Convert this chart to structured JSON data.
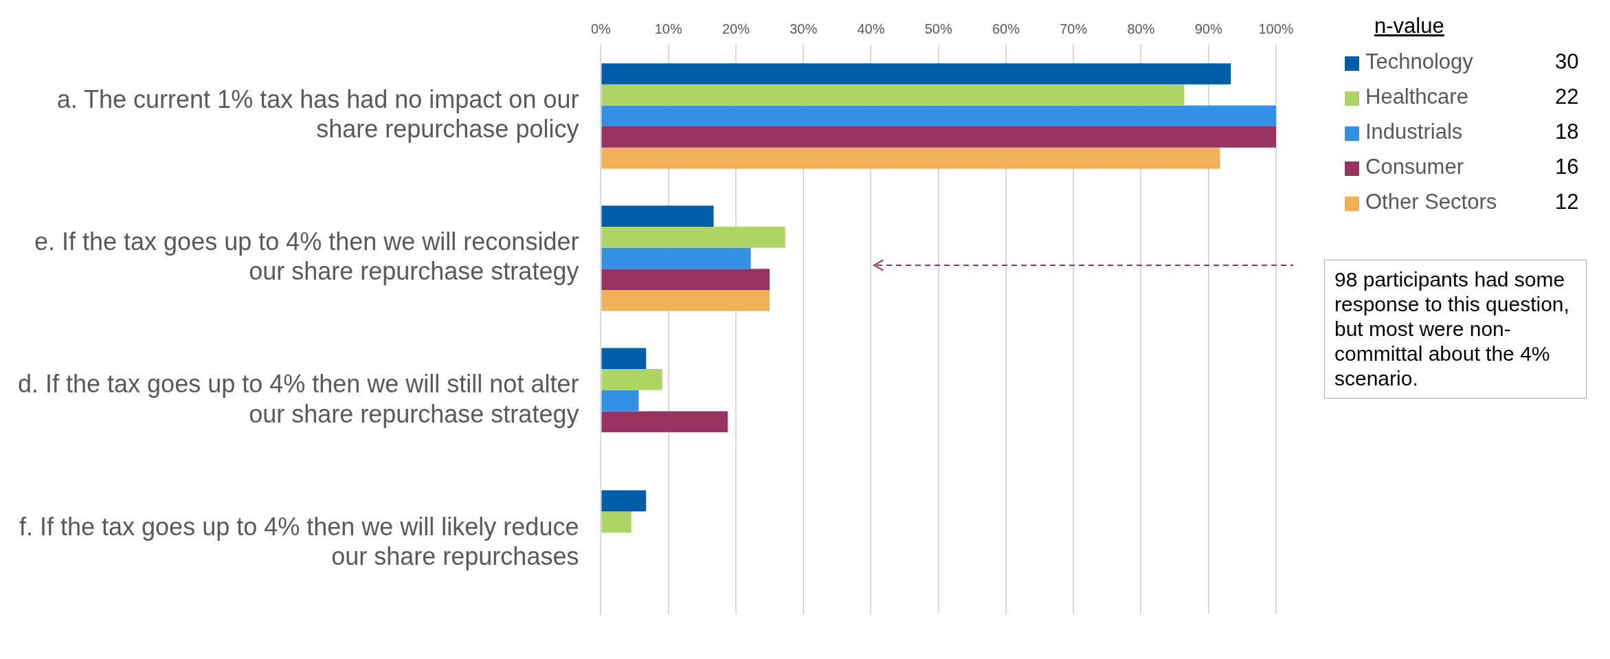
{
  "chart_data": {
    "type": "bar",
    "orientation": "horizontal",
    "categories": [
      "a. The current 1% tax has had no impact on our share repurchase policy",
      "e. If the tax goes up to 4% then we will reconsider our share repurchase strategy",
      "d. If the tax goes up to 4% then we will still not alter our share repurchase strategy",
      "f. If the tax goes up to 4% then we will likely reduce our share repurchases"
    ],
    "series": [
      {
        "name": "Technology",
        "color": "#005daa",
        "values": [
          93.3,
          16.7,
          6.7,
          6.7
        ]
      },
      {
        "name": "Healthcare",
        "color": "#add465",
        "values": [
          86.4,
          27.3,
          9.1,
          4.5
        ]
      },
      {
        "name": "Industrials",
        "color": "#3390e5",
        "values": [
          100,
          22.2,
          5.6,
          0
        ]
      },
      {
        "name": "Consumer",
        "color": "#983363",
        "values": [
          100,
          25,
          18.8,
          0
        ]
      },
      {
        "name": "Other Sectors",
        "color": "#f3af57",
        "values": [
          91.7,
          25,
          0,
          0
        ]
      }
    ],
    "xlim": [
      0,
      100
    ],
    "xticks": [
      {
        "value": 0,
        "label": "0%"
      },
      {
        "value": 10,
        "label": "10%"
      },
      {
        "value": 20,
        "label": "20%"
      },
      {
        "value": 30,
        "label": "30%"
      },
      {
        "value": 40,
        "label": "40%"
      },
      {
        "value": 50,
        "label": "50%"
      },
      {
        "value": 60,
        "label": "60%"
      },
      {
        "value": 70,
        "label": "70%"
      },
      {
        "value": 80,
        "label": "80%"
      },
      {
        "value": 90,
        "label": "90%"
      },
      {
        "value": 100,
        "label": "100%"
      }
    ],
    "grid": "x",
    "legend": "top right",
    "legend_title": "n-value",
    "annotations": [
      "30",
      "22",
      "18",
      "16",
      "12",
      "98 participants had some response to this question, but most were non-committal about the 4% scenario."
    ]
  }
}
